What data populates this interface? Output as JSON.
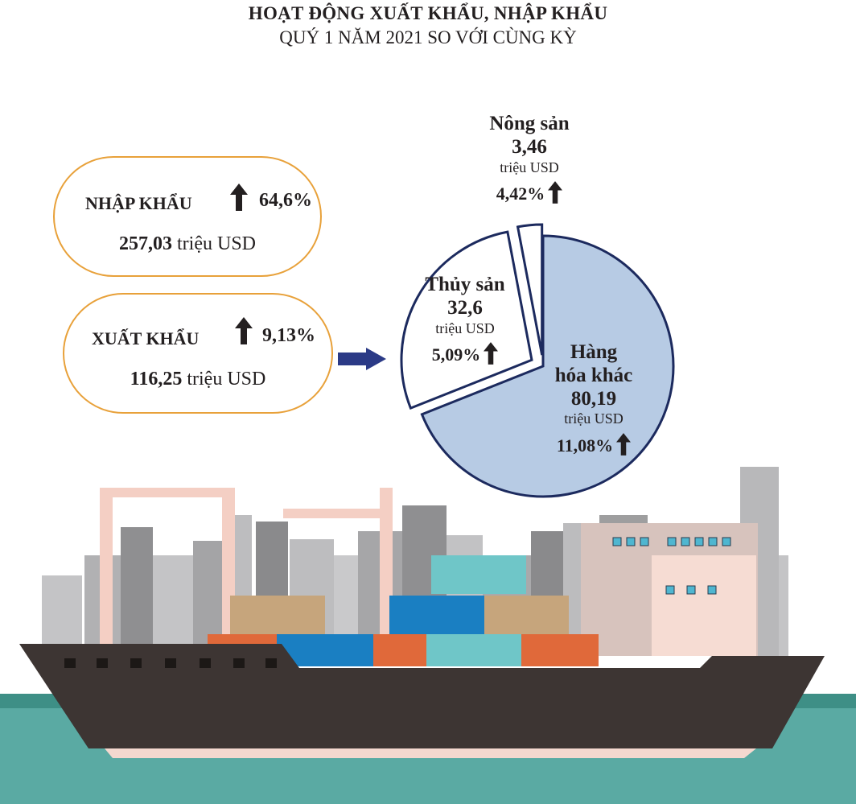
{
  "title": "HOẠT ĐỘNG XUẤT KHẨU, NHẬP KHẨU",
  "subtitle": "QUÝ 1 NĂM 2021 SO VỚI CÙNG KỲ",
  "import": {
    "label": "NHẬP KHẨU",
    "change": "64,6%",
    "amount": "257,03",
    "unit": "triệu USD"
  },
  "export": {
    "label": "XUẤT KHẨU",
    "change": "9,13%",
    "amount": "116,25",
    "unit": "triệu USD"
  },
  "chart_data": {
    "type": "pie",
    "slices": [
      {
        "name_line1": "Hàng",
        "name_line2": "hóa khác",
        "value": 80.19,
        "value_label": "80,19",
        "unit": "triệu USD",
        "change": "11,08%",
        "color": "#b7cbe4"
      },
      {
        "name_line1": "Thủy sản",
        "name_line2": "",
        "value": 32.6,
        "value_label": "32,6",
        "unit": "triệu USD",
        "change": "5,09%",
        "color": "#ffffff"
      },
      {
        "name_line1": "Nông sản",
        "name_line2": "",
        "value": 3.46,
        "value_label": "3,46",
        "unit": "triệu USD",
        "change": "4,42%",
        "color": "#ffffff"
      }
    ],
    "outline_color": "#1c2a5e"
  }
}
